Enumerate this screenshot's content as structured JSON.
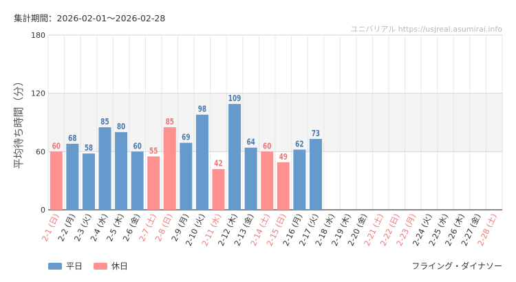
{
  "header": {
    "period_label": "集計期間：2026-02-01～2026-02-28",
    "site": "ユニバリアル  https://usjreal.asumirai.info"
  },
  "footer": {
    "attraction": "フライング・ダイナソー"
  },
  "legend": [
    {
      "label": "平日",
      "color": "#6699cc"
    },
    {
      "label": "休日",
      "color": "#ff9090"
    }
  ],
  "colors": {
    "weekday_bar": "#6699cc",
    "holiday_bar": "#ff9090",
    "weekday_text": "#4a7ab0",
    "holiday_text": "#ee7777",
    "band": "#f4f4f4",
    "grid": "#e6e6e6"
  },
  "chart_data": {
    "type": "bar",
    "title": "",
    "xlabel": "",
    "ylabel": "平均待ち時間（分）",
    "ylim": [
      0,
      180
    ],
    "yticks": [
      0,
      60,
      120,
      180
    ],
    "shaded_band": [
      60,
      120
    ],
    "categories": [
      "2-1 (日)",
      "2-2 (月)",
      "2-3 (火)",
      "2-4 (水)",
      "2-5 (木)",
      "2-6 (金)",
      "2-7 (土)",
      "2-8 (日)",
      "2-9 (月)",
      "2-10 (火)",
      "2-11 (水)",
      "2-12 (木)",
      "2-13 (金)",
      "2-14 (土)",
      "2-15 (日)",
      "2-16 (月)",
      "2-17 (火)",
      "2-18 (水)",
      "2-19 (木)",
      "2-20 (金)",
      "2-21 (土)",
      "2-22 (日)",
      "2-23 (月)",
      "2-24 (火)",
      "2-25 (水)",
      "2-26 (木)",
      "2-27 (金)",
      "2-28 (土)"
    ],
    "holiday": [
      true,
      false,
      false,
      false,
      false,
      false,
      true,
      true,
      false,
      false,
      true,
      false,
      false,
      true,
      true,
      false,
      false,
      false,
      false,
      false,
      true,
      true,
      true,
      false,
      false,
      false,
      false,
      true
    ],
    "values": [
      60,
      68,
      58,
      85,
      80,
      60,
      55,
      85,
      69,
      98,
      42,
      109,
      64,
      60,
      49,
      62,
      73,
      null,
      null,
      null,
      null,
      null,
      null,
      null,
      null,
      null,
      null,
      null
    ]
  }
}
